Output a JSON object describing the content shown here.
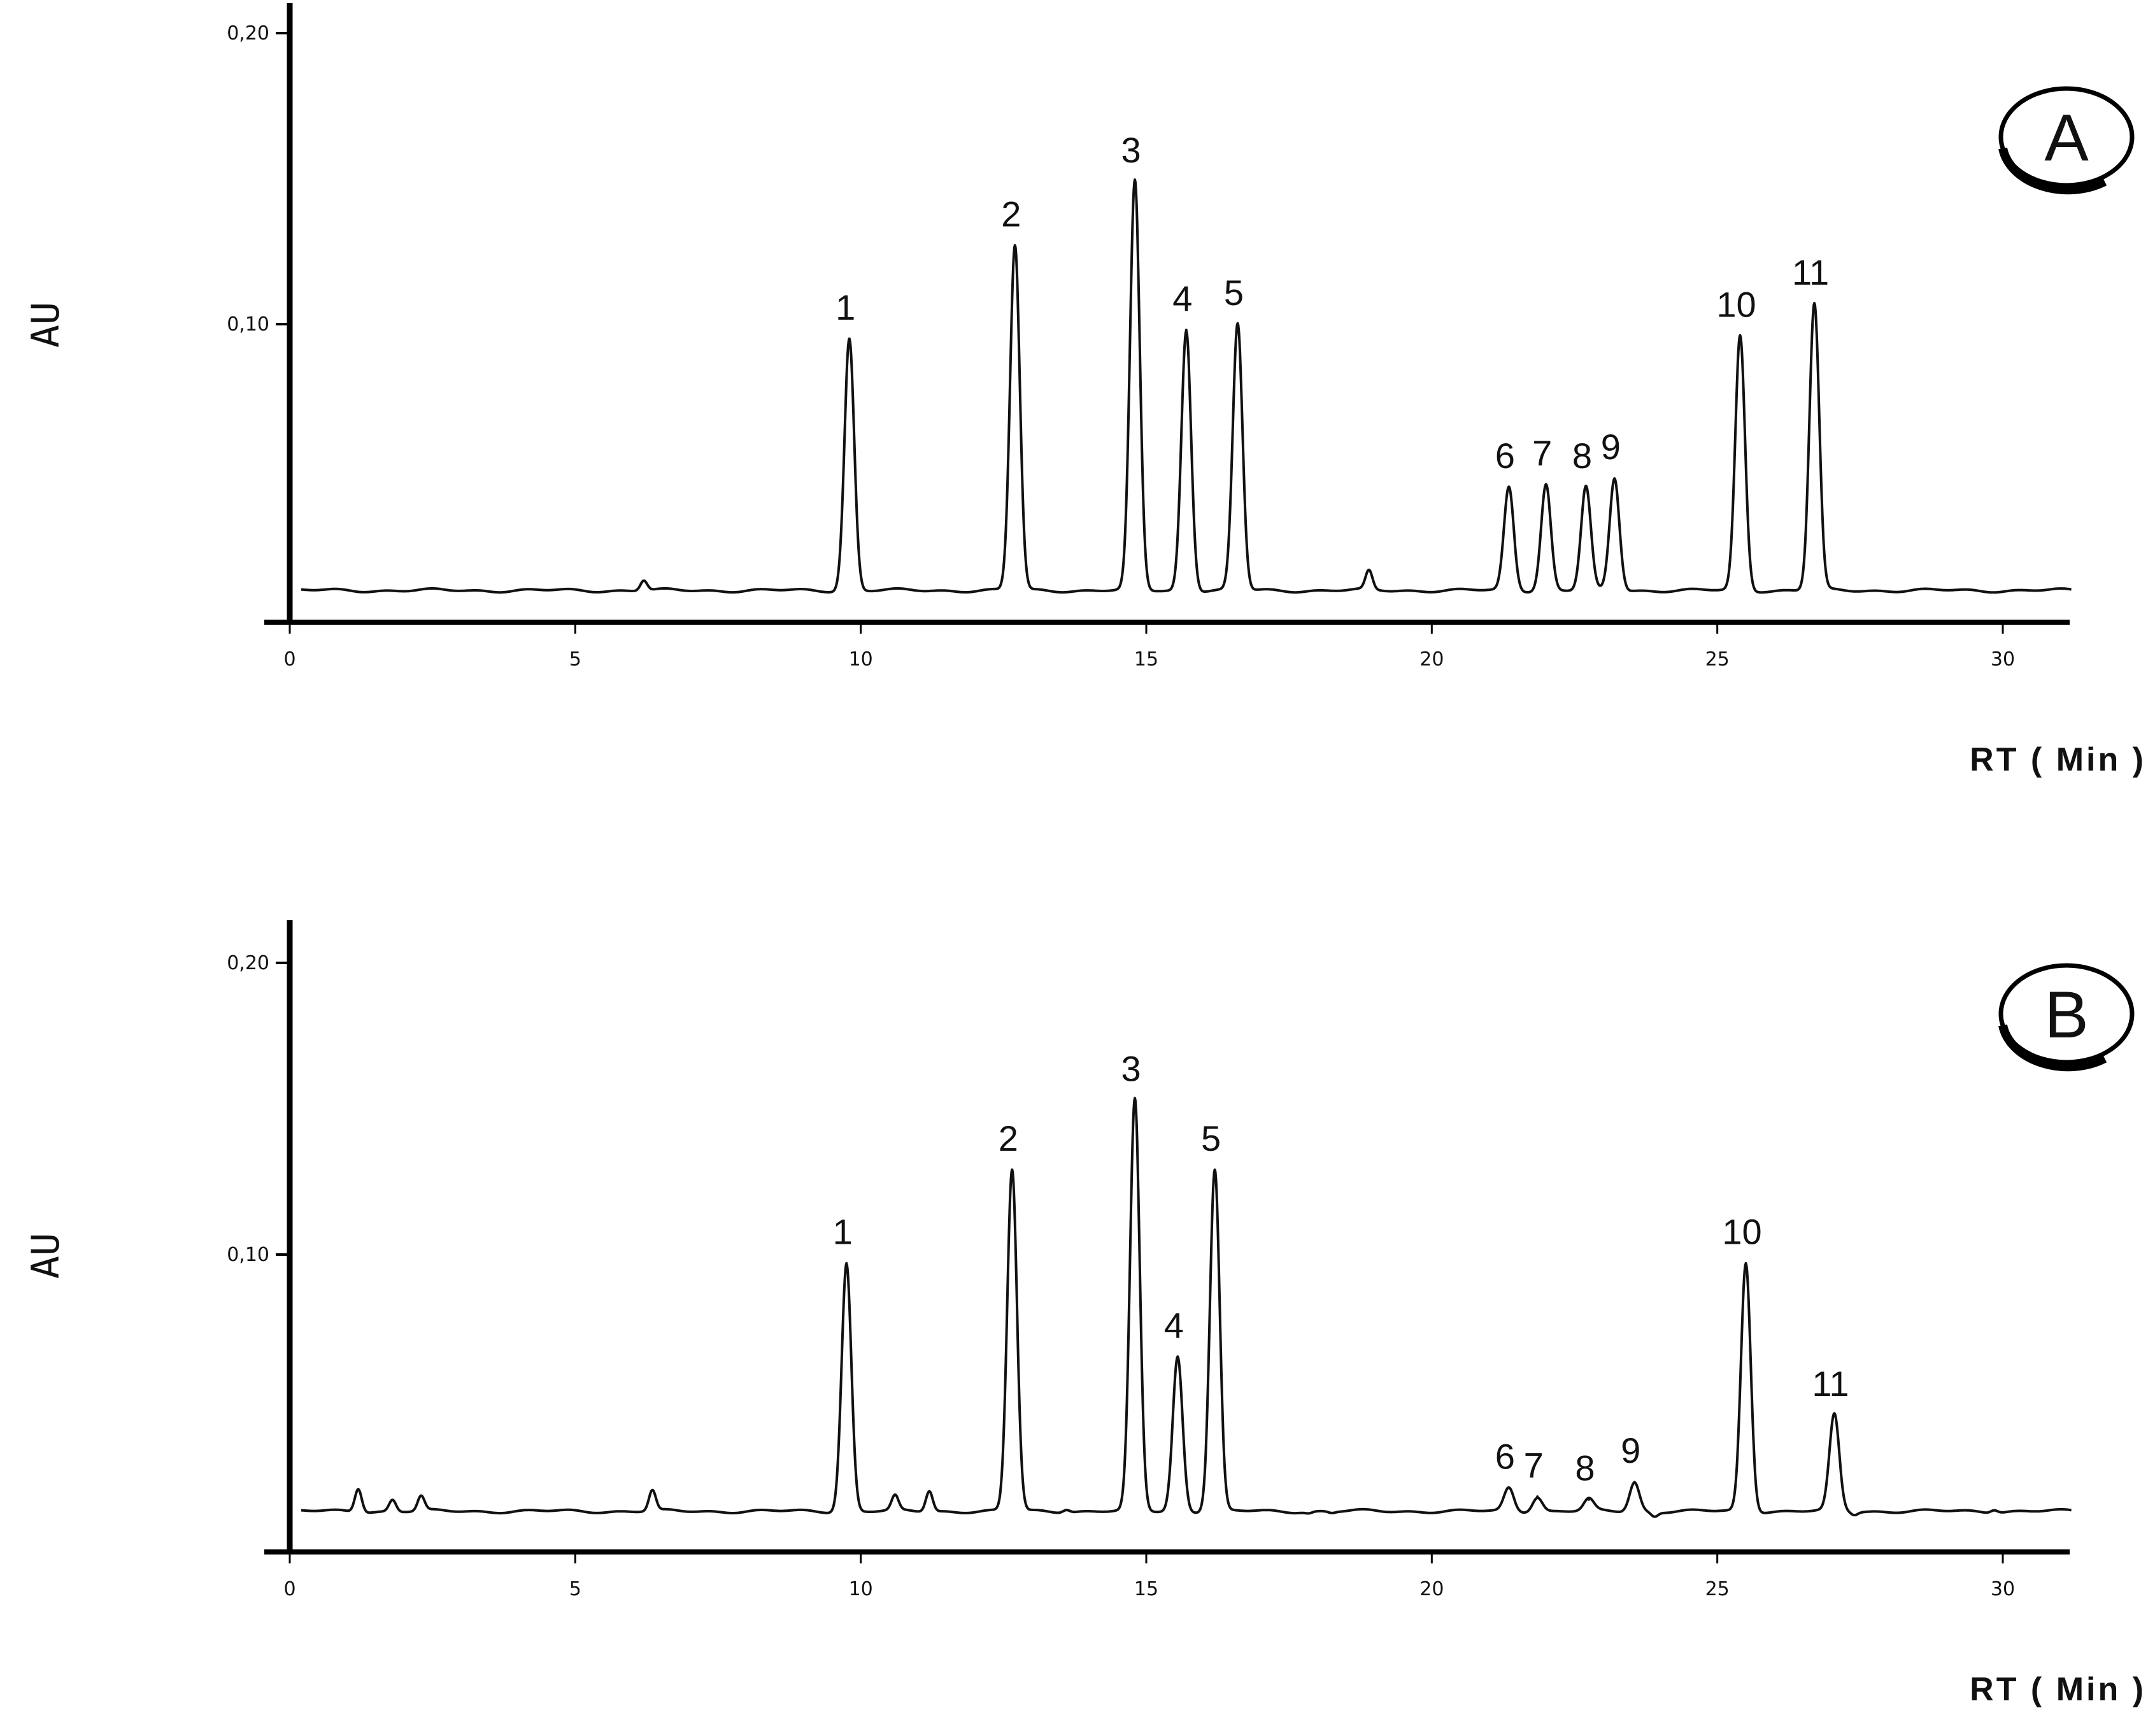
{
  "chart_data": [
    {
      "type": "line",
      "panel_label": "A",
      "xlabel": "RT ( Min )",
      "ylabel": "AU",
      "xlim": [
        0,
        31.2
      ],
      "ylim": [
        0,
        0.21
      ],
      "x_ticks": [
        0,
        5,
        10,
        15,
        20,
        25,
        30
      ],
      "x_tick_labels": [
        "0",
        "5",
        "10",
        "15",
        "20",
        "25",
        "30"
      ],
      "y_ticks": [
        0.1,
        0.2
      ],
      "y_tick_labels": [
        "0,10",
        "0,20"
      ],
      "grid": false,
      "baseline": 0.0085,
      "peaks": [
        {
          "label": "1",
          "rt": 9.8,
          "height": 0.095
        },
        {
          "label": "2",
          "rt": 12.7,
          "height": 0.127
        },
        {
          "label": "3",
          "rt": 14.8,
          "height": 0.149
        },
        {
          "label": "4",
          "rt": 15.7,
          "height": 0.098
        },
        {
          "label": "5",
          "rt": 16.6,
          "height": 0.1
        },
        {
          "label": "6",
          "rt": 21.35,
          "height": 0.044
        },
        {
          "label": "7",
          "rt": 22.0,
          "height": 0.045
        },
        {
          "label": "8",
          "rt": 22.7,
          "height": 0.044
        },
        {
          "label": "9",
          "rt": 23.2,
          "height": 0.047
        },
        {
          "label": "10",
          "rt": 25.4,
          "height": 0.096
        },
        {
          "label": "11",
          "rt": 26.7,
          "height": 0.107
        }
      ],
      "minor_peaks": [
        {
          "rt": 6.2,
          "height": 0.012
        },
        {
          "rt": 18.9,
          "height": 0.015
        }
      ]
    },
    {
      "type": "line",
      "panel_label": "B",
      "xlabel": "RT ( Min )",
      "ylabel": "AU",
      "xlim": [
        0,
        31.2
      ],
      "ylim": [
        0,
        0.21
      ],
      "x_ticks": [
        0,
        5,
        10,
        15,
        20,
        25,
        30
      ],
      "x_tick_labels": [
        "0",
        "5",
        "10",
        "15",
        "20",
        "25",
        "30"
      ],
      "y_ticks": [
        0.1,
        0.2
      ],
      "y_tick_labels": [
        "0,10",
        "0,20"
      ],
      "grid": false,
      "baseline": 0.012,
      "peaks": [
        {
          "label": "1",
          "rt": 9.75,
          "height": 0.097
        },
        {
          "label": "2",
          "rt": 12.65,
          "height": 0.129
        },
        {
          "label": "3",
          "rt": 14.8,
          "height": 0.153
        },
        {
          "label": "4",
          "rt": 15.55,
          "height": 0.065
        },
        {
          "label": "5",
          "rt": 16.2,
          "height": 0.129
        },
        {
          "label": "6",
          "rt": 21.35,
          "height": 0.02
        },
        {
          "label": "7",
          "rt": 21.85,
          "height": 0.017
        },
        {
          "label": "8",
          "rt": 22.75,
          "height": 0.016
        },
        {
          "label": "9",
          "rt": 23.55,
          "height": 0.022
        },
        {
          "label": "10",
          "rt": 25.5,
          "height": 0.097
        },
        {
          "label": "11",
          "rt": 27.05,
          "height": 0.045
        }
      ],
      "minor_peaks": [
        {
          "rt": 1.2,
          "height": 0.02
        },
        {
          "rt": 1.8,
          "height": 0.016
        },
        {
          "rt": 2.3,
          "height": 0.017
        },
        {
          "rt": 6.35,
          "height": 0.019
        },
        {
          "rt": 10.6,
          "height": 0.017
        },
        {
          "rt": 11.2,
          "height": 0.019
        },
        {
          "rt": 13.6,
          "height": 0.013
        },
        {
          "rt": 17.85,
          "height": 0.0115
        },
        {
          "rt": 18.25,
          "height": 0.0115
        },
        {
          "rt": 19.95,
          "height": 0.012
        },
        {
          "rt": 23.9,
          "height": 0.0105
        },
        {
          "rt": 27.4,
          "height": 0.011
        },
        {
          "rt": 29.85,
          "height": 0.013
        },
        {
          "rt": 30.5,
          "height": 0.012
        }
      ]
    }
  ]
}
